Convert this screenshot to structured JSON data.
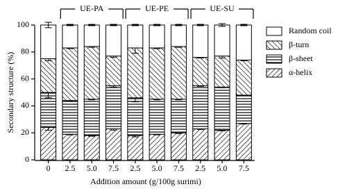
{
  "chart_data": {
    "type": "stacked_bar",
    "categories": [
      "0",
      "2.5",
      "5.0",
      "7.5",
      "2.5",
      "5.0",
      "7.5",
      "2.5",
      "5.0",
      "7.5"
    ],
    "group_labels": [
      "UE-PA",
      "UE-PE",
      "UE-SU"
    ],
    "series": [
      {
        "name": "α-helix",
        "pattern": "diag-down",
        "values": [
          24,
          19,
          18,
          23,
          18,
          19,
          20,
          23,
          22,
          27
        ],
        "errors": [
          2,
          0.5,
          0.5,
          1,
          1,
          0.5,
          0.5,
          0.5,
          0.5,
          0.5
        ]
      },
      {
        "name": "β-sheet",
        "pattern": "horizontal",
        "values": [
          26,
          25,
          27,
          32,
          28,
          26,
          25,
          32,
          32,
          21
        ],
        "errors": [
          4,
          0.5,
          0.5,
          1,
          3,
          0.5,
          0.5,
          0.5,
          0.5,
          0.5
        ]
      },
      {
        "name": "β-turn",
        "pattern": "diag-up",
        "values": [
          25,
          39,
          39,
          22,
          37,
          38,
          39,
          21,
          23,
          26
        ],
        "errors": [
          1.5,
          0.5,
          0.5,
          1,
          4,
          0.5,
          0.5,
          0.5,
          1.5,
          0.5
        ]
      },
      {
        "name": "Random coil",
        "pattern": "none",
        "values": [
          25,
          17,
          16,
          23,
          17,
          17,
          16,
          24,
          23,
          26
        ],
        "errors": [
          2,
          0.5,
          0.5,
          0.5,
          0.5,
          0.5,
          0.5,
          0.5,
          1,
          0.5
        ]
      }
    ],
    "ylim": [
      0,
      100
    ],
    "yticks": [
      0,
      20,
      40,
      60,
      80,
      100
    ],
    "ylabel": "Secondary structure (%)",
    "xlabel": "Addition amount (g/100g surimi)"
  }
}
